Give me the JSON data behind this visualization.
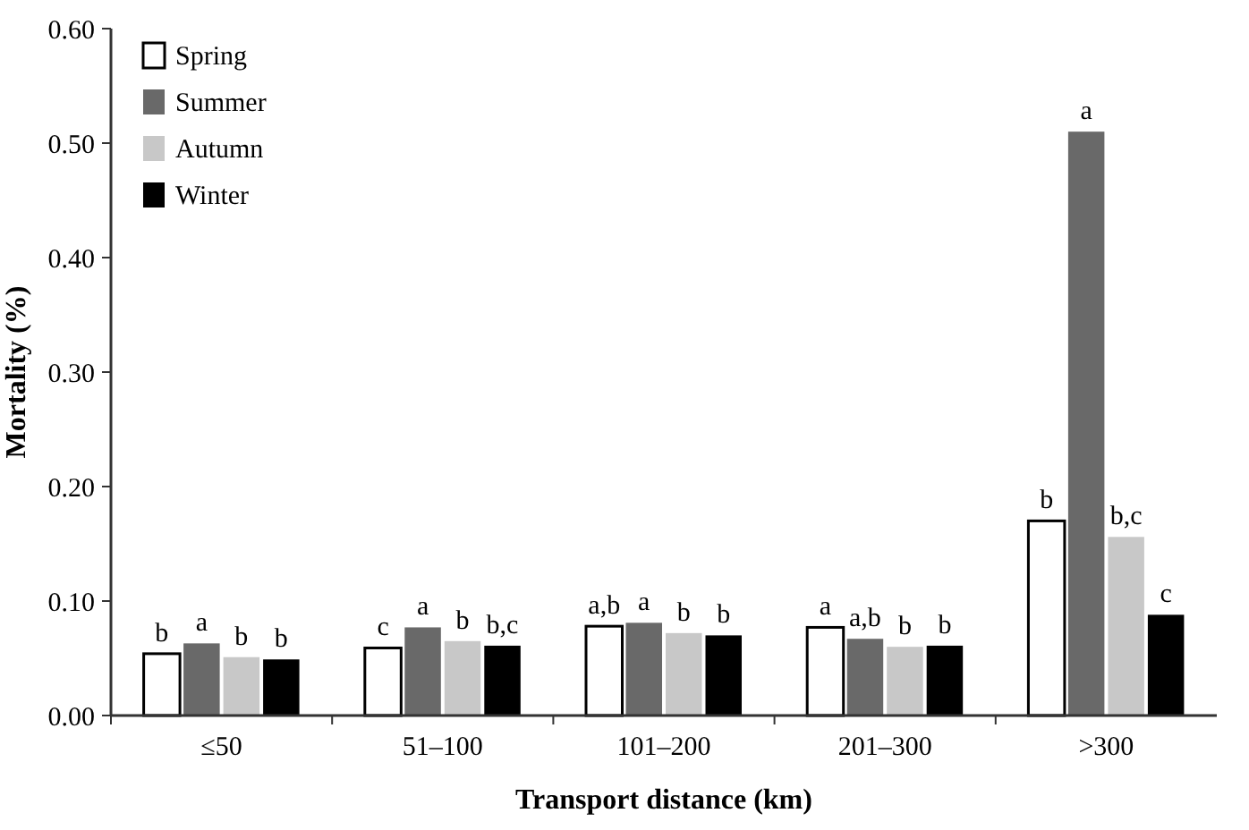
{
  "chart_data": {
    "type": "bar",
    "xlabel": "Transport distance (km)",
    "ylabel": "Mortality (%)",
    "categories": [
      "≤50",
      "51–100",
      "101–200",
      "201–300",
      ">300"
    ],
    "series": [
      {
        "name": "Spring",
        "color": "#ffffff",
        "values": [
          0.054,
          0.059,
          0.078,
          0.077,
          0.17
        ],
        "value_labels": [
          "b",
          "c",
          "a,b",
          "a",
          "b"
        ]
      },
      {
        "name": "Summer",
        "color": "#696969",
        "values": [
          0.063,
          0.077,
          0.081,
          0.067,
          0.51
        ],
        "value_labels": [
          "a",
          "a",
          "a",
          "a,b",
          "a"
        ]
      },
      {
        "name": "Autumn",
        "color": "#c8c8c8",
        "values": [
          0.051,
          0.065,
          0.072,
          0.06,
          0.156
        ],
        "value_labels": [
          "b",
          "b",
          "b",
          "b",
          "b,c"
        ]
      },
      {
        "name": "Winter",
        "color": "#000000",
        "values": [
          0.049,
          0.061,
          0.07,
          0.061,
          0.088
        ],
        "value_labels": [
          "b",
          "b,c",
          "b",
          "b",
          "c"
        ]
      }
    ],
    "ylim": [
      0,
      0.6
    ],
    "yticks": [
      {
        "value": 0,
        "label": "0.00"
      },
      {
        "value": 0.1,
        "label": "0.10"
      },
      {
        "value": 0.2,
        "label": "0.20"
      },
      {
        "value": 0.3,
        "label": "0.30"
      },
      {
        "value": 0.4,
        "label": "0.40"
      },
      {
        "value": 0.5,
        "label": "0.50"
      },
      {
        "value": 0.6,
        "label": "0.60"
      }
    ],
    "legend": "top left",
    "grid": false
  }
}
